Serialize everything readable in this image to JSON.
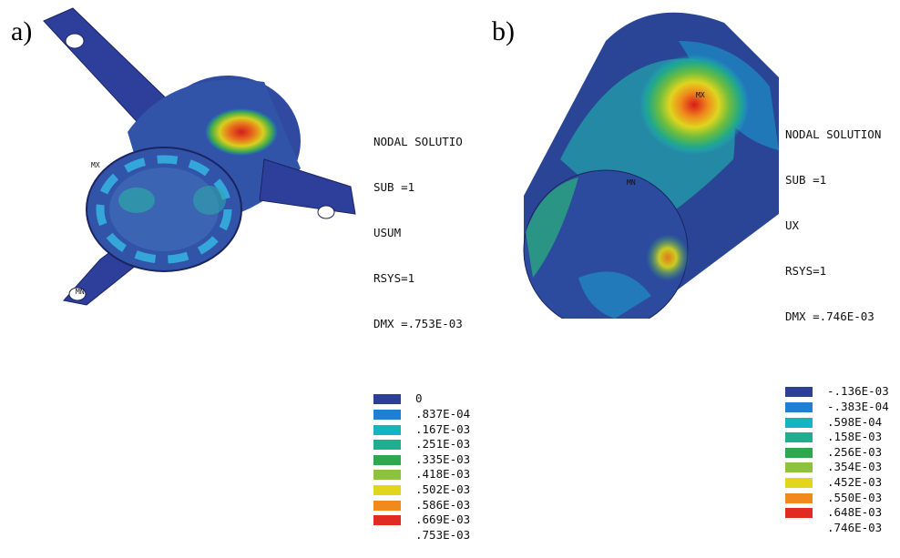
{
  "panels": [
    {
      "label": "a)",
      "tags": {
        "mx": "MX",
        "mn": "MN"
      },
      "legend": {
        "header": [
          "NODAL SOLUTIO",
          "SUB =1",
          "USUM",
          "RSYS=1",
          "DMX =.753E-03"
        ],
        "entries": [
          {
            "value": "0",
            "color": "#2b3f94"
          },
          {
            "value": ".837E-04",
            "color": "#1f7fd1"
          },
          {
            "value": ".167E-03",
            "color": "#17b3c2"
          },
          {
            "value": ".251E-03",
            "color": "#1fae8f"
          },
          {
            "value": ".335E-03",
            "color": "#2ea84c"
          },
          {
            "value": ".418E-03",
            "color": "#8cc23c"
          },
          {
            "value": ".502E-03",
            "color": "#e2d61d"
          },
          {
            "value": ".586E-03",
            "color": "#f08a1c"
          },
          {
            "value": ".669E-03",
            "color": "#e02a22"
          },
          {
            "value": ".753E-03",
            "color": null
          }
        ]
      }
    },
    {
      "label": "b)",
      "tags": {
        "mx": "MX",
        "mn": "MN"
      },
      "legend": {
        "header": [
          "NODAL SOLUTION",
          "SUB =1",
          "UX",
          "RSYS=1",
          "DMX =.746E-03"
        ],
        "entries": [
          {
            "value": "-.136E-03",
            "color": "#2b3f94"
          },
          {
            "value": "-.383E-04",
            "color": "#1f7fd1"
          },
          {
            "value": ".598E-04",
            "color": "#17b3c2"
          },
          {
            "value": ".158E-03",
            "color": "#1fae8f"
          },
          {
            "value": ".256E-03",
            "color": "#2ea84c"
          },
          {
            "value": ".354E-03",
            "color": "#8cc23c"
          },
          {
            "value": ".452E-03",
            "color": "#e2d61d"
          },
          {
            "value": ".550E-03",
            "color": "#f08a1c"
          },
          {
            "value": ".648E-03",
            "color": "#e02a22"
          },
          {
            "value": ".746E-03",
            "color": null
          }
        ]
      }
    }
  ]
}
